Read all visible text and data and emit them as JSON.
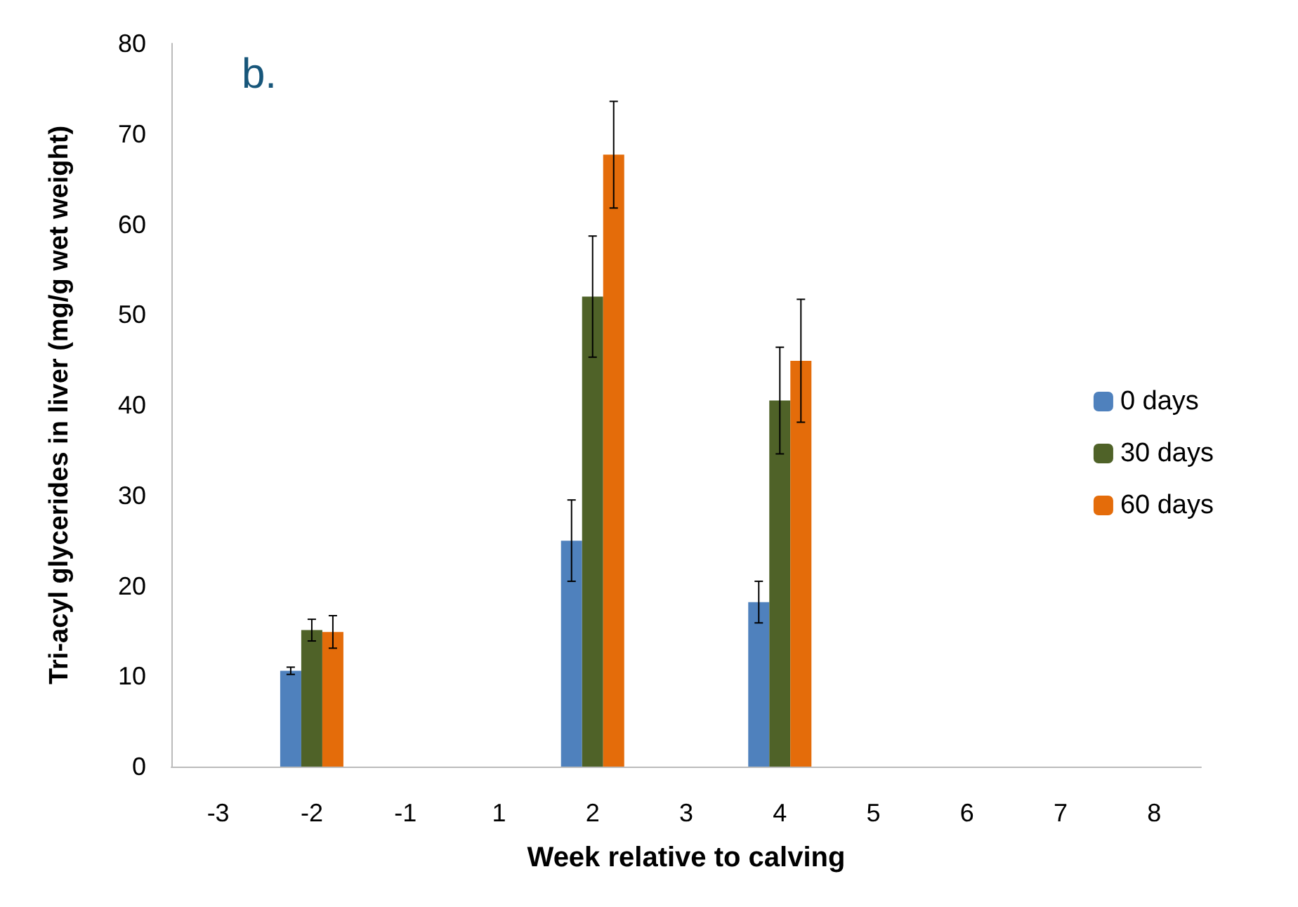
{
  "chart_data": {
    "type": "bar",
    "annotations": [
      "b."
    ],
    "xlabel": "Week relative to calving",
    "ylabel": "Tri-acyl glycerides in liver (mg/g wet weight)",
    "categories": [
      "-3",
      "-2",
      "-1",
      "1",
      "2",
      "3",
      "4",
      "5",
      "6",
      "7",
      "8"
    ],
    "series": [
      {
        "name": "0 days",
        "color": "#4f81bd",
        "values": [
          null,
          10.6,
          null,
          null,
          25.0,
          null,
          18.2,
          null,
          null,
          null,
          null
        ],
        "errors": [
          null,
          0.4,
          null,
          null,
          4.5,
          null,
          2.3,
          null,
          null,
          null,
          null
        ]
      },
      {
        "name": "30 days",
        "color": "#4f6228",
        "values": [
          null,
          15.1,
          null,
          null,
          52.0,
          null,
          40.5,
          null,
          null,
          null,
          null
        ],
        "errors": [
          null,
          1.2,
          null,
          null,
          6.7,
          null,
          5.9,
          null,
          null,
          null,
          null
        ]
      },
      {
        "name": "60 days",
        "color": "#e46c0a",
        "values": [
          null,
          14.9,
          null,
          null,
          67.7,
          null,
          44.9,
          null,
          null,
          null,
          null
        ],
        "errors": [
          null,
          1.8,
          null,
          null,
          5.9,
          null,
          6.8,
          null,
          null,
          null,
          null
        ]
      }
    ],
    "ylim": [
      0,
      80
    ],
    "yticks": [
      0,
      10,
      20,
      30,
      40,
      50,
      60,
      70,
      80
    ],
    "grid": false,
    "legend": "right"
  }
}
